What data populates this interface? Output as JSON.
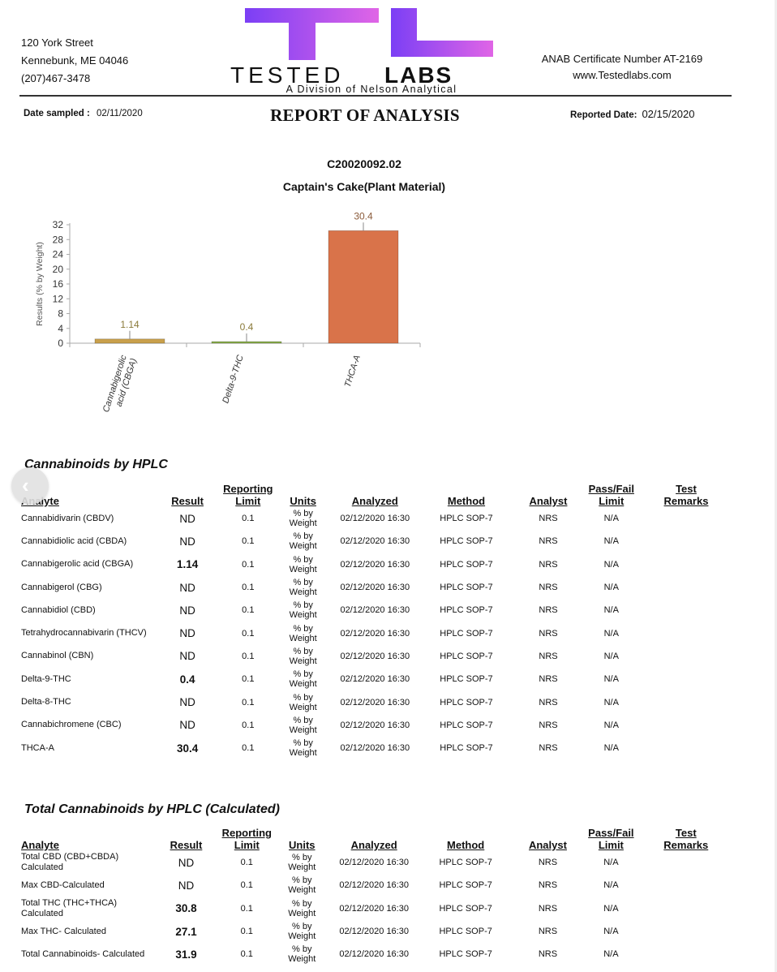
{
  "header": {
    "address": [
      "120 York Street",
      "Kennebunk, ME 04046",
      "(207)467-3478"
    ],
    "logo": {
      "text_left": "TESTED",
      "text_right": "LABS",
      "tagline": "A Division of Nelson Analytical",
      "colors": {
        "top_gradient_start": "#7b3ff5",
        "top_gradient_end": "#e065e6",
        "text": "#111111"
      }
    },
    "certificate": "ANAB Certificate Number AT-2169",
    "website": "www.Testedlabs.com"
  },
  "report": {
    "title": "REPORT OF ANALYSIS",
    "date_sampled_label": "Date sampled :",
    "date_sampled": "02/11/2020",
    "reported_label": "Reported Date:",
    "reported_date": "02/15/2020",
    "sample_id": "C20020092.02",
    "sample_name": "Captain's Cake(Plant Material)"
  },
  "chart_data": {
    "type": "bar",
    "categories": [
      "Cannabigerolic acid (CBGA)",
      "Delta-9-THC",
      "THCA-A"
    ],
    "values": [
      1.14,
      0.4,
      30.4
    ],
    "value_labels": [
      "1.14",
      "0.4",
      "30.4"
    ],
    "colors": [
      "#c9a04c",
      "#8ab04a",
      "#d9734a"
    ],
    "title": "",
    "xlabel": "",
    "ylabel": "Results (% by Weight)",
    "ylim": [
      0,
      32
    ],
    "yticks": [
      "0",
      "4",
      "8",
      "12",
      "16",
      "20",
      "24",
      "28",
      "32"
    ],
    "grid": false
  },
  "table_headers": {
    "analyte": "Analyte",
    "result": "Result",
    "reporting_1": "Reporting",
    "reporting_2": "Limit",
    "units": "Units",
    "analyzed": "Analyzed",
    "method": "Method",
    "analyst": "Analyst",
    "passfail_1": "Pass/Fail",
    "passfail_2": "Limit",
    "remarks_1": "Test",
    "remarks_2": "Remarks"
  },
  "hplc": {
    "title": "Cannabinoids by HPLC",
    "rows": [
      {
        "analyte": "Cannabidivarin (CBDV)",
        "result": "ND",
        "limit": "0.1",
        "units": "% by Weight",
        "analyzed": "02/12/2020 16:30",
        "method": "HPLC SOP-7",
        "analyst": "NRS",
        "passfail": "N/A",
        "remarks": ""
      },
      {
        "analyte": "Cannabidiolic acid (CBDA)",
        "result": "ND",
        "limit": "0.1",
        "units": "% by Weight",
        "analyzed": "02/12/2020 16:30",
        "method": "HPLC SOP-7",
        "analyst": "NRS",
        "passfail": "N/A",
        "remarks": ""
      },
      {
        "analyte": "Cannabigerolic acid (CBGA)",
        "result": "1.14",
        "limit": "0.1",
        "units": "% by Weight",
        "analyzed": "02/12/2020 16:30",
        "method": "HPLC SOP-7",
        "analyst": "NRS",
        "passfail": "N/A",
        "remarks": ""
      },
      {
        "analyte": "Cannabigerol (CBG)",
        "result": "ND",
        "limit": "0.1",
        "units": "% by Weight",
        "analyzed": "02/12/2020 16:30",
        "method": "HPLC SOP-7",
        "analyst": "NRS",
        "passfail": "N/A",
        "remarks": ""
      },
      {
        "analyte": "Cannabidiol (CBD)",
        "result": "ND",
        "limit": "0.1",
        "units": "% by Weight",
        "analyzed": "02/12/2020 16:30",
        "method": "HPLC SOP-7",
        "analyst": "NRS",
        "passfail": "N/A",
        "remarks": ""
      },
      {
        "analyte": "Tetrahydrocannabivarin (THCV)",
        "result": "ND",
        "limit": "0.1",
        "units": "% by Weight",
        "analyzed": "02/12/2020 16:30",
        "method": "HPLC SOP-7",
        "analyst": "NRS",
        "passfail": "N/A",
        "remarks": ""
      },
      {
        "analyte": "Cannabinol (CBN)",
        "result": "ND",
        "limit": "0.1",
        "units": "% by Weight",
        "analyzed": "02/12/2020 16:30",
        "method": "HPLC SOP-7",
        "analyst": "NRS",
        "passfail": "N/A",
        "remarks": ""
      },
      {
        "analyte": "Delta-9-THC",
        "result": "0.4",
        "limit": "0.1",
        "units": "% by Weight",
        "analyzed": "02/12/2020 16:30",
        "method": "HPLC SOP-7",
        "analyst": "NRS",
        "passfail": "N/A",
        "remarks": ""
      },
      {
        "analyte": "Delta-8-THC",
        "result": "ND",
        "limit": "0.1",
        "units": "% by Weight",
        "analyzed": "02/12/2020 16:30",
        "method": "HPLC SOP-7",
        "analyst": "NRS",
        "passfail": "N/A",
        "remarks": ""
      },
      {
        "analyte": "Cannabichromene (CBC)",
        "result": "ND",
        "limit": "0.1",
        "units": "% by Weight",
        "analyzed": "02/12/2020 16:30",
        "method": "HPLC SOP-7",
        "analyst": "NRS",
        "passfail": "N/A",
        "remarks": ""
      },
      {
        "analyte": "THCA-A",
        "result": "30.4",
        "limit": "0.1",
        "units": "% by Weight",
        "analyzed": "02/12/2020 16:30",
        "method": "HPLC SOP-7",
        "analyst": "NRS",
        "passfail": "N/A",
        "remarks": ""
      }
    ]
  },
  "totals": {
    "title": "Total Cannabinoids by HPLC (Calculated)",
    "rows": [
      {
        "analyte": "Total CBD (CBD+CBDA) Calculated",
        "result": "ND",
        "limit": "0.1",
        "units": "% by Weight",
        "analyzed": "02/12/2020 16:30",
        "method": "HPLC SOP-7",
        "analyst": "NRS",
        "passfail": "N/A",
        "remarks": ""
      },
      {
        "analyte": "Max CBD-Calculated",
        "result": "ND",
        "limit": "0.1",
        "units": "% by Weight",
        "analyzed": "02/12/2020 16:30",
        "method": "HPLC SOP-7",
        "analyst": "NRS",
        "passfail": "N/A",
        "remarks": ""
      },
      {
        "analyte": "Total THC (THC+THCA) Calculated",
        "result": "30.8",
        "limit": "0.1",
        "units": "% by Weight",
        "analyzed": "02/12/2020 16:30",
        "method": "HPLC SOP-7",
        "analyst": "NRS",
        "passfail": "N/A",
        "remarks": ""
      },
      {
        "analyte": "Max THC- Calculated",
        "result": "27.1",
        "limit": "0.1",
        "units": "% by Weight",
        "analyzed": "02/12/2020 16:30",
        "method": "HPLC SOP-7",
        "analyst": "NRS",
        "passfail": "N/A",
        "remarks": ""
      },
      {
        "analyte": "Total Cannabinoids- Calculated",
        "result": "31.9",
        "limit": "0.1",
        "units": "% by Weight",
        "analyzed": "02/12/2020 16:30",
        "method": "HPLC SOP-7",
        "analyst": "NRS",
        "passfail": "N/A",
        "remarks": ""
      }
    ]
  },
  "nav": {
    "prev_icon": "chevron-left-icon",
    "prev_glyph": "‹"
  }
}
